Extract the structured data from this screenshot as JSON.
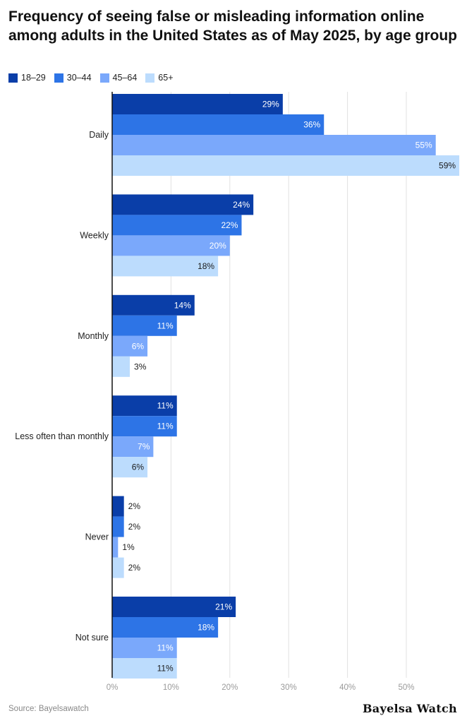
{
  "chart_data": {
    "type": "bar",
    "orientation": "horizontal",
    "title": "Frequency of seeing false or misleading information online among adults in the United States as of May 2025, by age group",
    "categories": [
      "Daily",
      "Weekly",
      "Monthly",
      "Less often than monthly",
      "Never",
      "Not sure"
    ],
    "series": [
      {
        "name": "18–29",
        "color": "#0a3ea8",
        "values": [
          29,
          24,
          14,
          11,
          2,
          21
        ],
        "labels": [
          "29%",
          "24%",
          "14%",
          "11%",
          "2%",
          "21%"
        ]
      },
      {
        "name": "30–44",
        "color": "#2d74e6",
        "values": [
          36,
          22,
          11,
          11,
          2,
          18
        ],
        "labels": [
          "36%",
          "22%",
          "11%",
          "11%",
          "2%",
          "18%"
        ]
      },
      {
        "name": "45–64",
        "color": "#7aa8fb",
        "values": [
          55,
          20,
          6,
          7,
          1,
          11
        ],
        "labels": [
          "55%",
          "20%",
          "6%",
          "7%",
          "1%",
          "11%"
        ]
      },
      {
        "name": "65+",
        "color": "#bcdcfd",
        "values": [
          59,
          18,
          3,
          6,
          2,
          11
        ],
        "labels": [
          "59%",
          "18%",
          "3%",
          "6%",
          "2%",
          "11%"
        ]
      }
    ],
    "x_ticks": [
      0,
      10,
      20,
      30,
      40,
      50
    ],
    "x_tick_labels": [
      "0%",
      "10%",
      "20%",
      "30%",
      "40%",
      "50%"
    ],
    "xlim": [
      0,
      59
    ],
    "grid": true,
    "legend_position": "top-left",
    "source": "Source: Bayelsawatch",
    "brand": "Bayelsa Watch"
  }
}
